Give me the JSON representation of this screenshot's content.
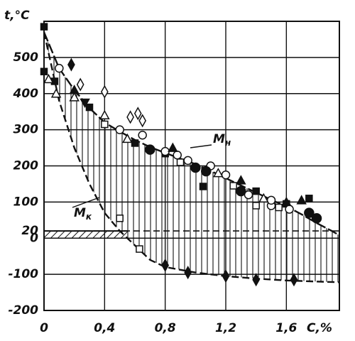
{
  "chart_data": {
    "type": "scatter",
    "y_label": "t,°C",
    "x_label": "C,%",
    "xlim": [
      0,
      1.95
    ],
    "xticks": [
      0,
      {
        "value": 0.4,
        "label": "0,4"
      },
      {
        "value": 0.8,
        "label": "0,8"
      },
      {
        "value": 1.2,
        "label": "1,2"
      },
      {
        "value": 1.6,
        "label": "1,6"
      }
    ],
    "ylim": [
      -200,
      600
    ],
    "yticks": [
      -200,
      -100,
      0,
      20,
      100,
      200,
      300,
      400,
      500
    ],
    "grid": true,
    "reference_line": 20,
    "curves": [
      {
        "name": "Mн",
        "label": "M",
        "subscript": "н",
        "x": [
          0,
          0.1,
          0.2,
          0.3,
          0.4,
          0.5,
          0.6,
          0.7,
          0.8,
          0.9,
          1.0,
          1.1,
          1.2,
          1.3,
          1.4,
          1.5,
          1.6,
          1.7,
          1.8,
          1.9,
          1.95
        ],
        "values": [
          570,
          470,
          410,
          360,
          320,
          295,
          272,
          252,
          236,
          220,
          205,
          186,
          166,
          146,
          126,
          106,
          88,
          66,
          42,
          20,
          8
        ]
      },
      {
        "name": "Mк",
        "label": "M",
        "subscript": "к",
        "x": [
          0,
          0.1,
          0.2,
          0.3,
          0.4,
          0.5,
          0.6,
          0.7,
          0.8,
          1.0,
          1.2,
          1.4,
          1.6,
          1.8,
          1.95
        ],
        "values": [
          570,
          380,
          250,
          150,
          70,
          20,
          -20,
          -60,
          -80,
          -95,
          -105,
          -112,
          -117,
          -120,
          -122
        ]
      }
    ],
    "series": [
      {
        "marker": "square",
        "filled": true,
        "color": "#111",
        "x": [
          0,
          0,
          0.07,
          0.3,
          0.6,
          0.8,
          1.05,
          1.4,
          1.6,
          1.75
        ],
        "values": [
          585,
          461,
          434,
          362,
          263,
          234,
          143,
          130,
          95,
          110
        ]
      },
      {
        "marker": "circle",
        "filled": false,
        "color": "#111",
        "x": [
          0.1,
          0.5,
          0.65,
          0.8,
          0.88,
          0.95,
          1.1,
          1.2,
          1.35,
          1.5,
          1.5,
          1.62
        ],
        "values": [
          470,
          300,
          285,
          240,
          230,
          215,
          200,
          175,
          120,
          90,
          105,
          80
        ]
      },
      {
        "marker": "circle",
        "filled": true,
        "color": "#111",
        "x": [
          0.7,
          1.0,
          1.07,
          1.3,
          1.75,
          1.8
        ],
        "values": [
          245,
          195,
          185,
          130,
          70,
          55
        ]
      },
      {
        "marker": "triangle",
        "filled": false,
        "color": "#111",
        "x": [
          0.03,
          0.08,
          0.2,
          0.4,
          0.55,
          1.15,
          1.45
        ],
        "values": [
          440,
          400,
          390,
          340,
          275,
          180,
          110
        ]
      },
      {
        "marker": "triangle",
        "filled": true,
        "color": "#111",
        "x": [
          0.2,
          0.85,
          1.3,
          1.6,
          1.7
        ],
        "values": [
          410,
          250,
          160,
          100,
          105
        ]
      },
      {
        "marker": "square",
        "filled": false,
        "color": "#111",
        "x": [
          0.4,
          0.5,
          0.63,
          0.9,
          1.25,
          1.4,
          1.55
        ],
        "values": [
          315,
          55,
          -30,
          210,
          145,
          90,
          85
        ]
      },
      {
        "marker": "diamond",
        "filled": true,
        "color": "#111",
        "x": [
          0.18,
          0.8,
          0.95,
          1.2,
          1.4,
          1.65
        ],
        "values": [
          480,
          -75,
          -95,
          -105,
          -115,
          -115
        ]
      },
      {
        "marker": "diamond",
        "filled": false,
        "color": "#111",
        "x": [
          0.24,
          0.4,
          0.57,
          0.62,
          0.65
        ],
        "values": [
          425,
          405,
          335,
          345,
          325
        ]
      },
      {
        "marker": "triangle-down",
        "filled": true,
        "color": "#111",
        "x": [
          0.27
        ],
        "values": [
          375
        ]
      }
    ]
  }
}
